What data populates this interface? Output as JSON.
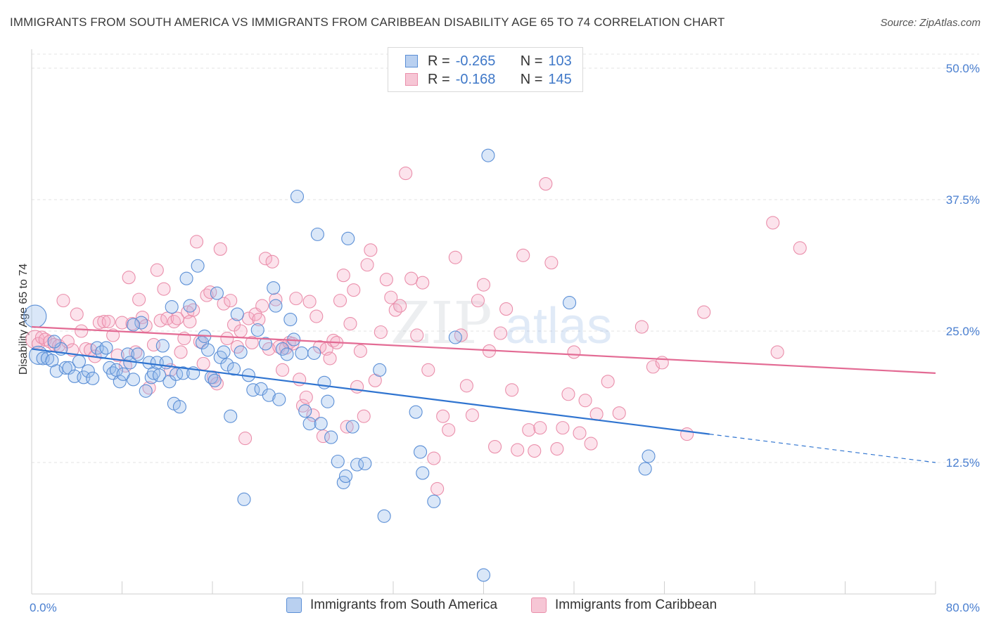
{
  "header": {
    "title": "IMMIGRANTS FROM SOUTH AMERICA VS IMMIGRANTS FROM CARIBBEAN DISABILITY AGE 65 TO 74 CORRELATION CHART",
    "source": "Source: ZipAtlas.com"
  },
  "watermark": {
    "zip": "ZIP",
    "atlas": "atlas"
  },
  "legend": {
    "r_label": "R =",
    "n_label": "N =",
    "series": [
      {
        "r": "-0.265",
        "n": "103",
        "color": "#5b8fd6"
      },
      {
        "r": "-0.168",
        "n": "145",
        "color": "#ea8fab"
      }
    ]
  },
  "bottom_legend": {
    "south_america": "Immigrants from South America",
    "caribbean": "Immigrants from Caribbean"
  },
  "chart_data": {
    "type": "scatter",
    "title": "IMMIGRANTS FROM SOUTH AMERICA VS IMMIGRANTS FROM CARIBBEAN DISABILITY AGE 65 TO 74 CORRELATION CHART",
    "xlabel": "",
    "ylabel": "Disability Age 65 to 74",
    "xlim": [
      0,
      80
    ],
    "ylim": [
      0,
      52
    ],
    "x_tick_labels": [
      "0.0%",
      "80.0%"
    ],
    "y_ticks": [
      12.5,
      25.0,
      37.5,
      50.0
    ],
    "y_tick_labels": [
      "12.5%",
      "25.0%",
      "37.5%",
      "50.0%"
    ],
    "grid": true,
    "legend_position": "top-center",
    "series": [
      {
        "name": "Immigrants from South America",
        "color": "#5b8fd6",
        "r": -0.265,
        "n": 103,
        "trend": {
          "x": [
            0,
            60
          ],
          "y": [
            23.3,
            15.2
          ],
          "dashed_to": [
            80,
            12.5
          ]
        },
        "points": [
          [
            0.3,
            26.4
          ],
          [
            0.6,
            22.7
          ],
          [
            1.0,
            22.4
          ],
          [
            1.4,
            22.4
          ],
          [
            1.8,
            22.2
          ],
          [
            2.2,
            21.2
          ],
          [
            2.6,
            23.3
          ],
          [
            3.0,
            21.5
          ],
          [
            3.3,
            21.5
          ],
          [
            3.8,
            20.7
          ],
          [
            4.2,
            22.1
          ],
          [
            4.6,
            20.6
          ],
          [
            5.0,
            21.2
          ],
          [
            5.4,
            20.5
          ],
          [
            5.8,
            23.4
          ],
          [
            6.2,
            23.0
          ],
          [
            6.6,
            23.4
          ],
          [
            6.9,
            21.5
          ],
          [
            7.2,
            21.0
          ],
          [
            7.5,
            21.3
          ],
          [
            7.8,
            20.2
          ],
          [
            8.1,
            20.9
          ],
          [
            8.5,
            22.8
          ],
          [
            8.7,
            22.0
          ],
          [
            9.0,
            20.4
          ],
          [
            9.4,
            22.8
          ],
          [
            9.7,
            25.8
          ],
          [
            10.1,
            19.3
          ],
          [
            10.4,
            22.0
          ],
          [
            10.6,
            20.6
          ],
          [
            10.8,
            21.0
          ],
          [
            11.1,
            22.0
          ],
          [
            11.3,
            20.8
          ],
          [
            11.6,
            23.6
          ],
          [
            11.9,
            22.0
          ],
          [
            12.2,
            20.2
          ],
          [
            12.4,
            27.3
          ],
          [
            12.6,
            18.1
          ],
          [
            12.8,
            20.9
          ],
          [
            13.1,
            17.8
          ],
          [
            13.4,
            21.0
          ],
          [
            13.7,
            30.0
          ],
          [
            14.0,
            27.4
          ],
          [
            14.3,
            21.0
          ],
          [
            14.7,
            31.2
          ],
          [
            15.1,
            23.9
          ],
          [
            15.3,
            24.5
          ],
          [
            15.6,
            23.2
          ],
          [
            15.9,
            20.6
          ],
          [
            16.2,
            20.3
          ],
          [
            16.4,
            28.6
          ],
          [
            16.7,
            22.5
          ],
          [
            17.0,
            23.0
          ],
          [
            17.3,
            21.8
          ],
          [
            17.6,
            16.9
          ],
          [
            17.9,
            21.4
          ],
          [
            18.2,
            26.6
          ],
          [
            18.5,
            23.0
          ],
          [
            18.8,
            9.0
          ],
          [
            19.2,
            20.8
          ],
          [
            19.6,
            19.4
          ],
          [
            20.0,
            25.1
          ],
          [
            20.3,
            19.5
          ],
          [
            20.7,
            23.8
          ],
          [
            21.0,
            18.9
          ],
          [
            21.4,
            29.1
          ],
          [
            21.6,
            27.4
          ],
          [
            21.9,
            18.5
          ],
          [
            22.2,
            23.3
          ],
          [
            22.6,
            22.8
          ],
          [
            22.9,
            26.1
          ],
          [
            23.2,
            24.2
          ],
          [
            23.5,
            37.8
          ],
          [
            23.9,
            22.9
          ],
          [
            24.2,
            17.4
          ],
          [
            24.6,
            16.2
          ],
          [
            25.0,
            22.9
          ],
          [
            25.3,
            34.2
          ],
          [
            25.6,
            16.2
          ],
          [
            25.9,
            20.1
          ],
          [
            26.2,
            18.3
          ],
          [
            26.5,
            14.9
          ],
          [
            27.1,
            12.6
          ],
          [
            27.6,
            10.6
          ],
          [
            27.8,
            11.2
          ],
          [
            28.0,
            33.8
          ],
          [
            28.4,
            15.9
          ],
          [
            28.8,
            12.3
          ],
          [
            29.5,
            12.4
          ],
          [
            30.8,
            21.3
          ],
          [
            31.2,
            7.4
          ],
          [
            34.0,
            17.3
          ],
          [
            34.4,
            13.5
          ],
          [
            34.6,
            11.5
          ],
          [
            35.6,
            8.8
          ],
          [
            37.5,
            24.4
          ],
          [
            40.0,
            1.8
          ],
          [
            40.4,
            41.7
          ],
          [
            47.6,
            27.7
          ],
          [
            54.3,
            11.9
          ],
          [
            54.6,
            13.1
          ],
          [
            2.0,
            24.0
          ],
          [
            9.0,
            25.6
          ]
        ]
      },
      {
        "name": "Immigrants from Caribbean",
        "color": "#ea8fab",
        "r": -0.168,
        "n": 145,
        "trend": {
          "x": [
            0,
            80
          ],
          "y": [
            25.4,
            21.0
          ]
        },
        "points": [
          [
            0.3,
            24.2
          ],
          [
            0.6,
            23.8
          ],
          [
            0.9,
            24.4
          ],
          [
            1.2,
            24.2
          ],
          [
            1.6,
            24.0
          ],
          [
            2.0,
            23.7
          ],
          [
            2.4,
            23.6
          ],
          [
            2.8,
            27.9
          ],
          [
            3.2,
            24.0
          ],
          [
            3.6,
            23.2
          ],
          [
            4.0,
            26.6
          ],
          [
            4.4,
            25.0
          ],
          [
            4.8,
            23.3
          ],
          [
            5.2,
            23.2
          ],
          [
            5.6,
            22.6
          ],
          [
            6.0,
            25.8
          ],
          [
            6.4,
            25.9
          ],
          [
            6.8,
            25.9
          ],
          [
            7.2,
            24.6
          ],
          [
            7.6,
            22.7
          ],
          [
            8.0,
            25.8
          ],
          [
            8.3,
            21.7
          ],
          [
            8.6,
            30.1
          ],
          [
            8.9,
            25.7
          ],
          [
            9.2,
            23.0
          ],
          [
            9.5,
            28.0
          ],
          [
            9.8,
            26.3
          ],
          [
            10.1,
            25.5
          ],
          [
            10.4,
            19.6
          ],
          [
            10.8,
            23.7
          ],
          [
            11.1,
            30.8
          ],
          [
            11.4,
            26.0
          ],
          [
            11.7,
            29.0
          ],
          [
            12.0,
            26.2
          ],
          [
            12.3,
            21.3
          ],
          [
            12.6,
            25.9
          ],
          [
            12.9,
            26.2
          ],
          [
            13.2,
            23.0
          ],
          [
            13.5,
            24.3
          ],
          [
            13.8,
            26.8
          ],
          [
            14.0,
            25.9
          ],
          [
            14.3,
            27.0
          ],
          [
            14.6,
            33.5
          ],
          [
            14.9,
            24.0
          ],
          [
            15.2,
            21.9
          ],
          [
            15.5,
            28.4
          ],
          [
            15.8,
            28.7
          ],
          [
            16.1,
            20.6
          ],
          [
            16.4,
            20.0
          ],
          [
            16.7,
            32.8
          ],
          [
            17.0,
            27.6
          ],
          [
            17.3,
            24.3
          ],
          [
            17.6,
            27.9
          ],
          [
            17.9,
            25.6
          ],
          [
            18.2,
            23.5
          ],
          [
            18.5,
            25.0
          ],
          [
            18.9,
            14.8
          ],
          [
            19.2,
            26.2
          ],
          [
            19.5,
            23.9
          ],
          [
            19.8,
            26.6
          ],
          [
            20.1,
            26.1
          ],
          [
            20.4,
            27.4
          ],
          [
            20.7,
            31.9
          ],
          [
            21.0,
            23.3
          ],
          [
            21.3,
            31.6
          ],
          [
            21.6,
            28.0
          ],
          [
            21.9,
            23.5
          ],
          [
            22.2,
            21.3
          ],
          [
            22.5,
            23.4
          ],
          [
            22.8,
            23.9
          ],
          [
            23.1,
            23.8
          ],
          [
            23.4,
            28.1
          ],
          [
            23.7,
            20.4
          ],
          [
            24.0,
            17.9
          ],
          [
            24.3,
            18.7
          ],
          [
            24.6,
            27.8
          ],
          [
            24.9,
            17.0
          ],
          [
            25.2,
            26.4
          ],
          [
            25.5,
            23.5
          ],
          [
            25.8,
            15.0
          ],
          [
            26.1,
            23.3
          ],
          [
            26.4,
            22.4
          ],
          [
            26.7,
            24.1
          ],
          [
            27.0,
            23.9
          ],
          [
            27.3,
            27.9
          ],
          [
            27.6,
            30.3
          ],
          [
            27.9,
            15.9
          ],
          [
            28.2,
            25.7
          ],
          [
            28.5,
            28.9
          ],
          [
            28.8,
            19.7
          ],
          [
            29.1,
            23.1
          ],
          [
            29.4,
            16.9
          ],
          [
            29.7,
            31.3
          ],
          [
            30.0,
            32.7
          ],
          [
            30.4,
            20.3
          ],
          [
            30.9,
            24.9
          ],
          [
            31.4,
            29.9
          ],
          [
            31.8,
            28.2
          ],
          [
            32.2,
            27.0
          ],
          [
            32.6,
            27.4
          ],
          [
            33.1,
            40.0
          ],
          [
            33.6,
            30.0
          ],
          [
            34.1,
            24.6
          ],
          [
            34.6,
            29.6
          ],
          [
            35.1,
            21.3
          ],
          [
            35.6,
            12.9
          ],
          [
            35.9,
            10.0
          ],
          [
            36.4,
            16.9
          ],
          [
            36.9,
            15.6
          ],
          [
            37.5,
            32.0
          ],
          [
            38.0,
            24.6
          ],
          [
            38.5,
            19.8
          ],
          [
            39.0,
            17.0
          ],
          [
            39.5,
            27.9
          ],
          [
            40.0,
            29.4
          ],
          [
            40.5,
            23.1
          ],
          [
            41.0,
            14.0
          ],
          [
            41.5,
            24.8
          ],
          [
            42.0,
            27.1
          ],
          [
            42.5,
            19.4
          ],
          [
            43.0,
            13.7
          ],
          [
            43.5,
            32.2
          ],
          [
            44.0,
            15.6
          ],
          [
            44.5,
            13.6
          ],
          [
            45.0,
            15.8
          ],
          [
            45.5,
            39.0
          ],
          [
            46.0,
            31.5
          ],
          [
            46.5,
            13.8
          ],
          [
            47.0,
            15.8
          ],
          [
            47.5,
            19.0
          ],
          [
            48.0,
            23.0
          ],
          [
            48.5,
            15.3
          ],
          [
            49.0,
            18.4
          ],
          [
            49.5,
            14.3
          ],
          [
            50.0,
            17.1
          ],
          [
            51.0,
            20.2
          ],
          [
            52.0,
            17.2
          ],
          [
            54.0,
            25.4
          ],
          [
            55.0,
            21.6
          ],
          [
            55.8,
            22.0
          ],
          [
            58.0,
            15.2
          ],
          [
            59.5,
            26.8
          ],
          [
            65.6,
            35.3
          ],
          [
            66.0,
            23.0
          ],
          [
            68.0,
            32.9
          ]
        ]
      }
    ]
  }
}
